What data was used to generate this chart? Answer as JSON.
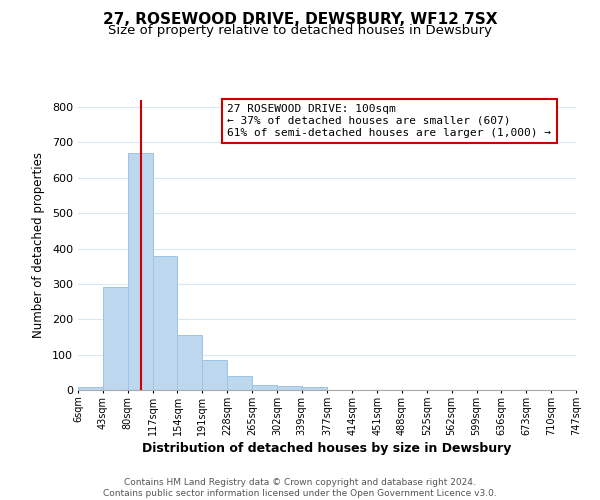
{
  "title": "27, ROSEWOOD DRIVE, DEWSBURY, WF12 7SX",
  "subtitle": "Size of property relative to detached houses in Dewsbury",
  "xlabel": "Distribution of detached houses by size in Dewsbury",
  "ylabel": "Number of detached properties",
  "bar_edges": [
    6,
    43,
    80,
    117,
    154,
    191,
    228,
    265,
    302,
    339,
    377,
    414,
    451,
    488,
    525,
    562,
    599,
    636,
    673,
    710,
    747
  ],
  "bar_heights": [
    8,
    290,
    670,
    380,
    155,
    85,
    40,
    13,
    10,
    8,
    0,
    0,
    0,
    0,
    0,
    0,
    0,
    0,
    0,
    0
  ],
  "bar_color": "#bdd7ee",
  "bar_edge_color": "#9dc3e6",
  "property_line_x": 100,
  "property_line_color": "#cc0000",
  "ylim": [
    0,
    820
  ],
  "yticks": [
    0,
    100,
    200,
    300,
    400,
    500,
    600,
    700,
    800
  ],
  "annotation_text": "27 ROSEWOOD DRIVE: 100sqm\n← 37% of detached houses are smaller (607)\n61% of semi-detached houses are larger (1,000) →",
  "annotation_box_color": "#ffffff",
  "annotation_box_edge": "#cc0000",
  "footer_line1": "Contains HM Land Registry data © Crown copyright and database right 2024.",
  "footer_line2": "Contains public sector information licensed under the Open Government Licence v3.0.",
  "background_color": "#ffffff",
  "grid_color": "#d9e8f5",
  "title_fontsize": 11,
  "subtitle_fontsize": 9.5
}
